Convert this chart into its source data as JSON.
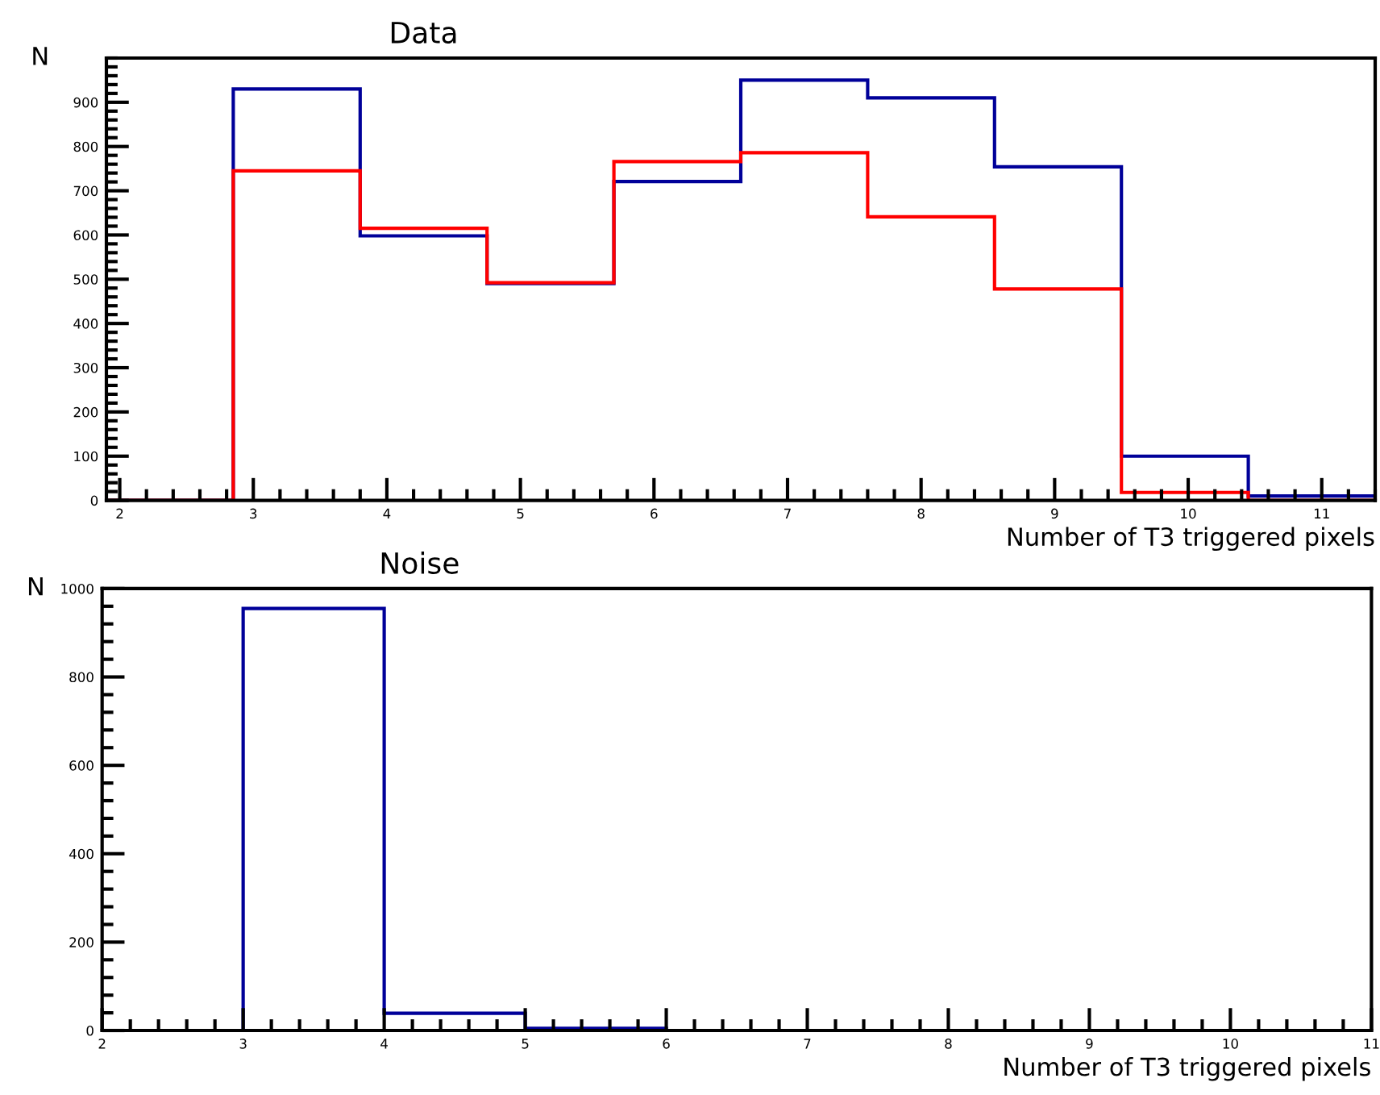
{
  "chart_data": [
    {
      "type": "histogram",
      "title": "Data",
      "xlabel": "Number of T3 triggered pixels",
      "ylabel": "N",
      "bins": [
        1.9,
        2.85,
        3.8,
        4.75,
        5.7,
        6.65,
        7.6,
        8.55,
        9.5,
        10.45,
        11.4
      ],
      "series": [
        {
          "color": "#000099",
          "values": [
            0,
            930,
            598,
            490,
            721,
            950,
            910,
            754,
            100,
            10
          ]
        },
        {
          "color": "#ff0000",
          "values": [
            0,
            745,
            615,
            492,
            766,
            786,
            641,
            478,
            18,
            0
          ]
        }
      ],
      "xlim": [
        1.9,
        11.4
      ],
      "ylim": [
        0,
        1000
      ],
      "xticks": [
        2,
        3,
        4,
        5,
        6,
        7,
        8,
        9,
        10,
        11
      ],
      "yticks": [
        0,
        100,
        200,
        300,
        400,
        500,
        600,
        700,
        800,
        900
      ]
    },
    {
      "type": "histogram",
      "title": "Noise",
      "xlabel": "Number of T3 triggered pixels",
      "ylabel": "N",
      "bins": [
        2,
        3,
        4,
        5,
        6,
        7,
        8,
        9,
        10,
        11
      ],
      "series": [
        {
          "color": "#000099",
          "values": [
            0,
            955,
            39,
            5,
            0,
            0,
            0,
            0,
            0
          ]
        }
      ],
      "xlim": [
        2,
        11
      ],
      "ylim": [
        0,
        1000
      ],
      "xticks": [
        2,
        3,
        4,
        5,
        6,
        7,
        8,
        9,
        10,
        11
      ],
      "yticks": [
        0,
        200,
        400,
        600,
        800,
        1000
      ]
    }
  ]
}
